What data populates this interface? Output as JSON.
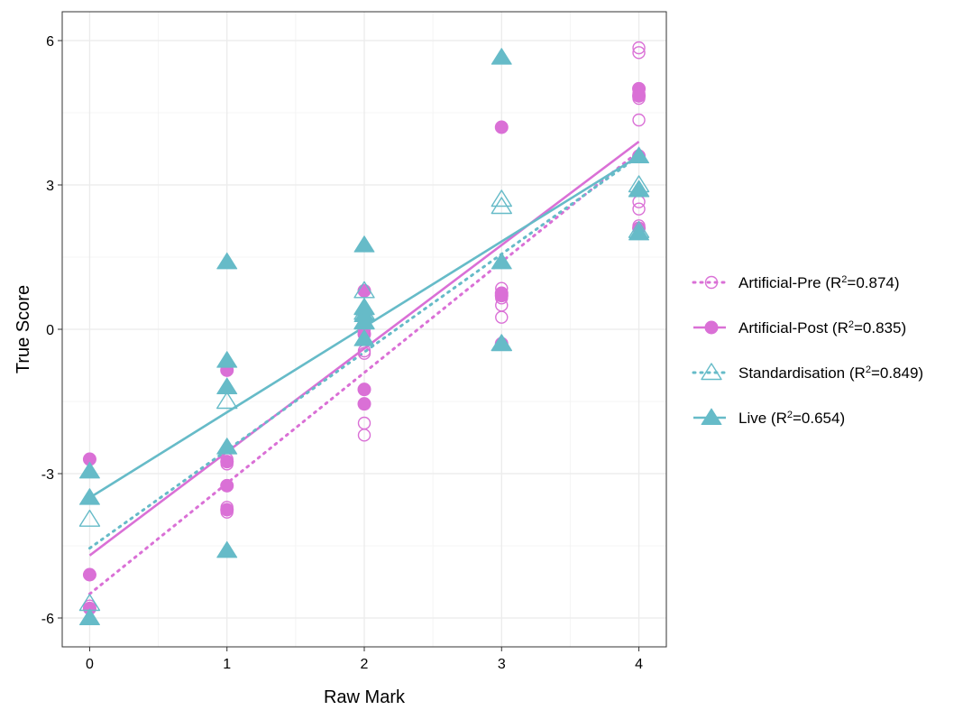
{
  "chart_data": {
    "type": "scatter",
    "xlabel": "Raw Mark",
    "ylabel": "True Score",
    "xlim": [
      -0.2,
      4.2
    ],
    "ylim": [
      -6.6,
      6.6
    ],
    "x_ticks": [
      0,
      1,
      2,
      3,
      4
    ],
    "x_tick_labels": [
      "0",
      "1",
      "2",
      "3",
      "4"
    ],
    "y_ticks": [
      -6,
      -3,
      0,
      3,
      6
    ],
    "y_tick_labels": [
      "-6",
      "-3",
      "0",
      "3",
      "6"
    ],
    "grid": true,
    "legend_position": "right",
    "colors": {
      "artificial": "#DA70D6",
      "standardisation": "#66BBC8",
      "grid": "#EBEBEB",
      "border": "#333333"
    },
    "series": [
      {
        "name": "Artificial-Pre",
        "r2_value": "0.874",
        "color": "#DA70D6",
        "marker": "open-circle",
        "line_style": "dotted",
        "points": [
          [
            0,
            -5.1
          ],
          [
            0,
            -5.75
          ],
          [
            0,
            -2.7
          ],
          [
            1,
            -0.85
          ],
          [
            1,
            -2.7
          ],
          [
            1,
            -2.8
          ],
          [
            1,
            -3.25
          ],
          [
            1,
            -3.7
          ],
          [
            1,
            -3.8
          ],
          [
            2,
            0.8
          ],
          [
            2,
            0.3
          ],
          [
            2,
            0.1
          ],
          [
            2,
            0.0
          ],
          [
            2,
            -0.5
          ],
          [
            2,
            -0.45
          ],
          [
            2,
            -1.25
          ],
          [
            2,
            -1.55
          ],
          [
            2,
            -1.95
          ],
          [
            2,
            -2.2
          ],
          [
            3,
            4.2
          ],
          [
            3,
            0.85
          ],
          [
            3,
            0.75
          ],
          [
            3,
            0.65
          ],
          [
            3,
            0.5
          ],
          [
            3,
            0.25
          ],
          [
            3,
            -0.3
          ],
          [
            4,
            5.85
          ],
          [
            4,
            5.75
          ],
          [
            4,
            5.0
          ],
          [
            4,
            4.9
          ],
          [
            4,
            4.8
          ],
          [
            4,
            4.35
          ],
          [
            4,
            3.6
          ],
          [
            4,
            2.65
          ],
          [
            4,
            2.5
          ],
          [
            4,
            2.15
          ]
        ],
        "fit": [
          [
            0,
            -5.5
          ],
          [
            4,
            3.7
          ]
        ]
      },
      {
        "name": "Artificial-Post",
        "r2_value": "0.835",
        "color": "#DA70D6",
        "marker": "filled-circle",
        "line_style": "solid",
        "points": [
          [
            0,
            -2.7
          ],
          [
            0,
            -5.1
          ],
          [
            0,
            -5.8
          ],
          [
            1,
            -0.85
          ],
          [
            1,
            -2.75
          ],
          [
            1,
            -3.25
          ],
          [
            1,
            -3.75
          ],
          [
            2,
            0.8
          ],
          [
            2,
            0.3
          ],
          [
            2,
            0.15
          ],
          [
            2,
            -0.1
          ],
          [
            2,
            -1.25
          ],
          [
            2,
            -1.55
          ],
          [
            3,
            4.2
          ],
          [
            3,
            0.75
          ],
          [
            3,
            0.7
          ],
          [
            3,
            -0.3
          ],
          [
            4,
            5.0
          ],
          [
            4,
            4.85
          ],
          [
            4,
            3.6
          ],
          [
            4,
            2.1
          ]
        ],
        "fit": [
          [
            0,
            -4.7
          ],
          [
            4,
            3.9
          ]
        ]
      },
      {
        "name": "Standardisation",
        "r2_value": "0.849",
        "color": "#66BBC8",
        "marker": "open-triangle",
        "line_style": "dotted",
        "points": [
          [
            0,
            -3.95
          ],
          [
            0,
            -5.7
          ],
          [
            1,
            -1.5
          ],
          [
            2,
            0.8
          ],
          [
            2,
            0.45
          ],
          [
            2,
            0.35
          ],
          [
            2,
            0.15
          ],
          [
            3,
            2.7
          ],
          [
            3,
            2.55
          ],
          [
            3,
            -0.3
          ],
          [
            4,
            3.0
          ],
          [
            4,
            2.9
          ],
          [
            4,
            2.05
          ]
        ],
        "fit": [
          [
            0,
            -4.55
          ],
          [
            4,
            3.6
          ]
        ]
      },
      {
        "name": "Live",
        "r2_value": "0.654",
        "color": "#66BBC8",
        "marker": "filled-triangle",
        "line_style": "solid",
        "points": [
          [
            0,
            -2.95
          ],
          [
            0,
            -3.5
          ],
          [
            0,
            -6.0
          ],
          [
            1,
            1.4
          ],
          [
            1,
            -0.65
          ],
          [
            1,
            -1.2
          ],
          [
            1,
            -2.45
          ],
          [
            1,
            -4.6
          ],
          [
            2,
            1.75
          ],
          [
            2,
            0.45
          ],
          [
            2,
            0.3
          ],
          [
            2,
            0.15
          ],
          [
            2,
            -0.2
          ],
          [
            3,
            5.65
          ],
          [
            3,
            1.4
          ],
          [
            3,
            -0.3
          ],
          [
            4,
            3.6
          ],
          [
            4,
            2.9
          ],
          [
            4,
            2.0
          ]
        ],
        "fit": [
          [
            0,
            -3.5
          ],
          [
            4,
            3.6
          ]
        ]
      }
    ],
    "legend": [
      {
        "label": "Artificial-Pre",
        "r2_value": "0.874"
      },
      {
        "label": "Artificial-Post",
        "r2_value": "0.835"
      },
      {
        "label": "Standardisation",
        "r2_value": "0.849"
      },
      {
        "label": "Live",
        "r2_value": "0.654"
      }
    ]
  }
}
